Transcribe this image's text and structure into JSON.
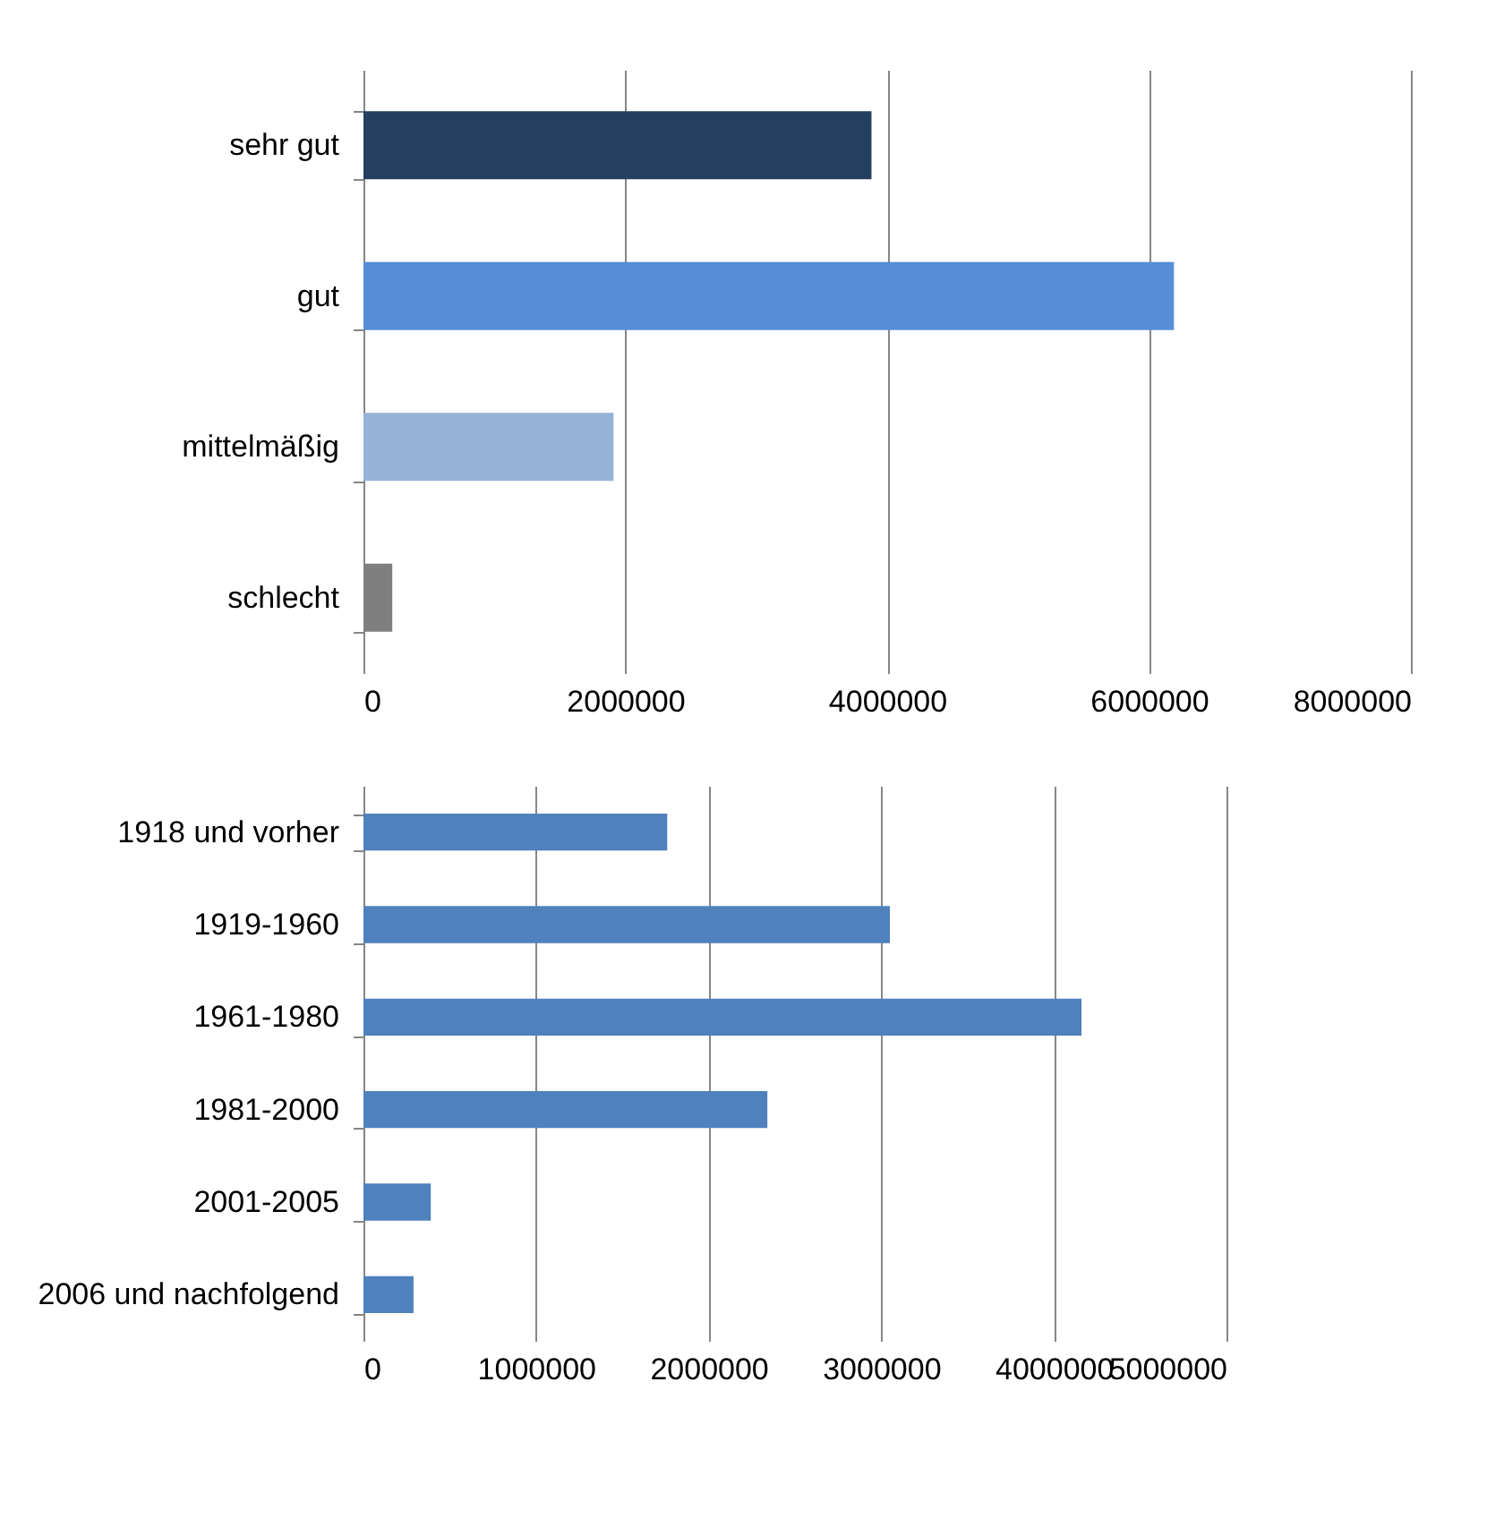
{
  "chart_data": [
    {
      "type": "bar",
      "orientation": "horizontal",
      "categories": [
        "sehr gut",
        "gut",
        "mittelmäßig",
        "schlecht"
      ],
      "values": [
        3880000,
        6190000,
        1910000,
        220000
      ],
      "colors": [
        "#243f60",
        "#558ed5",
        "#95b3d7",
        "#7f7f7f"
      ],
      "xlim": [
        0,
        8000000
      ],
      "xticks": [
        0,
        2000000,
        4000000,
        6000000,
        8000000
      ],
      "grid": "x"
    },
    {
      "type": "bar",
      "orientation": "horizontal",
      "categories": [
        "1918 und vorher",
        "1919-1960",
        "1961-1980",
        "1981-2000",
        "2001-2005",
        "2006 und nachfolgend"
      ],
      "values": [
        1760000,
        3050000,
        4160000,
        2340000,
        390000,
        290000
      ],
      "colors": [
        "#4f81bd",
        "#4f81bd",
        "#4f81bd",
        "#4f81bd",
        "#4f81bd",
        "#4f81bd"
      ],
      "xlim": [
        0,
        5000000
      ],
      "xticks": [
        0,
        1000000,
        2000000,
        3000000,
        4000000,
        5000000
      ],
      "grid": "x"
    }
  ]
}
